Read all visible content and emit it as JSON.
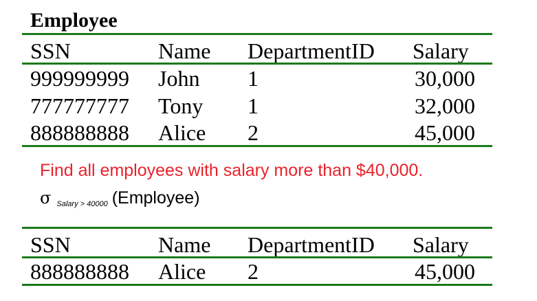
{
  "employee_table": {
    "title": "Employee",
    "headers": [
      "SSN",
      "Name",
      "DepartmentID",
      "Salary"
    ],
    "rows": [
      [
        "999999999",
        "John",
        "1",
        "30,000"
      ],
      [
        "777777777",
        "Tony",
        "1",
        "32,000"
      ],
      [
        "888888888",
        "Alice",
        "2",
        "45,000"
      ]
    ]
  },
  "query": {
    "question": "Find all employees with salary more than $40,000.",
    "sigma": "σ",
    "condition": "Salary > 40000",
    "relation": "(Employee)"
  },
  "result_table": {
    "headers": [
      "SSN",
      "Name",
      "DepartmentID",
      "Salary"
    ],
    "rows": [
      [
        "888888888",
        "Alice",
        "2",
        "45,000"
      ]
    ]
  },
  "colors": {
    "rule": "#1a7a1a",
    "question_text": "#e8232b"
  }
}
